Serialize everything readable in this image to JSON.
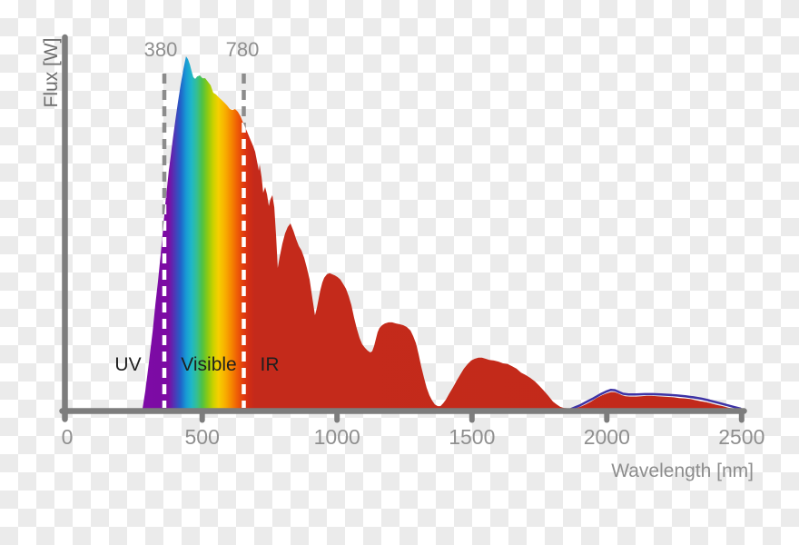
{
  "chart_data": {
    "type": "area",
    "title": "",
    "xlabel": "Wavelength [nm]",
    "ylabel": "Flux [W]",
    "x_range_nm": [
      0,
      2500
    ],
    "x_tick_labels": [
      "0",
      "500",
      "1000",
      "1500",
      "2000",
      "2500"
    ],
    "grid": false,
    "legend": false,
    "boundary_lines": [
      {
        "label": "380",
        "meaning": "UV / Visible boundary"
      },
      {
        "label": "780",
        "meaning": "Visible / IR boundary"
      }
    ],
    "region_labels": [
      "UV",
      "Visible",
      "IR"
    ],
    "series": [
      {
        "name": "solar-flux-spectrum",
        "style": "filled-area-spectral-gradient",
        "points_nm_flux": [
          [
            278,
            0
          ],
          [
            289,
            0.054
          ],
          [
            302,
            0.131
          ],
          [
            316,
            0.221
          ],
          [
            326,
            0.298
          ],
          [
            336,
            0.363
          ],
          [
            346,
            0.44
          ],
          [
            356,
            0.522
          ],
          [
            363,
            0.581
          ],
          [
            370,
            0.632
          ],
          [
            376,
            0.676
          ],
          [
            383,
            0.717
          ],
          [
            390,
            0.761
          ],
          [
            400,
            0.817
          ],
          [
            410,
            0.871
          ],
          [
            420,
            0.92
          ],
          [
            430,
            0.964
          ],
          [
            440,
            1
          ],
          [
            447,
            0.992
          ],
          [
            454,
            0.977
          ],
          [
            460,
            0.959
          ],
          [
            467,
            0.941
          ],
          [
            474,
            0.936
          ],
          [
            481,
            0.943
          ],
          [
            491,
            0.946
          ],
          [
            501,
            0.938
          ],
          [
            511,
            0.938
          ],
          [
            521,
            0.928
          ],
          [
            531,
            0.918
          ],
          [
            541,
            0.897
          ],
          [
            551,
            0.892
          ],
          [
            561,
            0.884
          ],
          [
            571,
            0.877
          ],
          [
            582,
            0.869
          ],
          [
            592,
            0.861
          ],
          [
            602,
            0.851
          ],
          [
            612,
            0.848
          ],
          [
            622,
            0.851
          ],
          [
            632,
            0.843
          ],
          [
            642,
            0.83
          ],
          [
            649,
            0.817
          ],
          [
            656,
            0.805
          ],
          [
            666,
            0.787
          ],
          [
            676,
            0.769
          ],
          [
            686,
            0.751
          ],
          [
            696,
            0.73
          ],
          [
            703,
            0.702
          ],
          [
            710,
            0.676
          ],
          [
            713,
            0.694
          ],
          [
            720,
            0.658
          ],
          [
            726,
            0.614
          ],
          [
            733,
            0.63
          ],
          [
            740,
            0.609
          ],
          [
            747,
            0.576
          ],
          [
            753,
            0.596
          ],
          [
            760,
            0.607
          ],
          [
            767,
            0.573
          ],
          [
            774,
            0.486
          ],
          [
            780,
            0.401
          ],
          [
            787,
            0.432
          ],
          [
            797,
            0.47
          ],
          [
            807,
            0.499
          ],
          [
            817,
            0.517
          ],
          [
            827,
            0.527
          ],
          [
            838,
            0.506
          ],
          [
            848,
            0.483
          ],
          [
            858,
            0.463
          ],
          [
            868,
            0.45
          ],
          [
            878,
            0.429
          ],
          [
            888,
            0.401
          ],
          [
            898,
            0.368
          ],
          [
            908,
            0.316
          ],
          [
            918,
            0.267
          ],
          [
            925,
            0.288
          ],
          [
            932,
            0.316
          ],
          [
            938,
            0.339
          ],
          [
            945,
            0.36
          ],
          [
            952,
            0.373
          ],
          [
            962,
            0.383
          ],
          [
            972,
            0.386
          ],
          [
            982,
            0.383
          ],
          [
            992,
            0.38
          ],
          [
            1002,
            0.375
          ],
          [
            1012,
            0.368
          ],
          [
            1023,
            0.355
          ],
          [
            1033,
            0.342
          ],
          [
            1043,
            0.321
          ],
          [
            1053,
            0.296
          ],
          [
            1063,
            0.26
          ],
          [
            1073,
            0.229
          ],
          [
            1083,
            0.203
          ],
          [
            1093,
            0.185
          ],
          [
            1103,
            0.175
          ],
          [
            1113,
            0.167
          ],
          [
            1123,
            0.162
          ],
          [
            1130,
            0.165
          ],
          [
            1137,
            0.18
          ],
          [
            1144,
            0.201
          ],
          [
            1150,
            0.219
          ],
          [
            1157,
            0.231
          ],
          [
            1167,
            0.239
          ],
          [
            1177,
            0.244
          ],
          [
            1191,
            0.247
          ],
          [
            1204,
            0.247
          ],
          [
            1218,
            0.244
          ],
          [
            1231,
            0.242
          ],
          [
            1245,
            0.239
          ],
          [
            1258,
            0.234
          ],
          [
            1272,
            0.224
          ],
          [
            1282,
            0.208
          ],
          [
            1292,
            0.188
          ],
          [
            1302,
            0.157
          ],
          [
            1312,
            0.121
          ],
          [
            1322,
            0.09
          ],
          [
            1332,
            0.062
          ],
          [
            1342,
            0.041
          ],
          [
            1352,
            0.026
          ],
          [
            1362,
            0.015
          ],
          [
            1373,
            0.01
          ],
          [
            1383,
            0.01
          ],
          [
            1393,
            0.018
          ],
          [
            1403,
            0.028
          ],
          [
            1416,
            0.046
          ],
          [
            1430,
            0.064
          ],
          [
            1443,
            0.082
          ],
          [
            1457,
            0.1
          ],
          [
            1470,
            0.116
          ],
          [
            1484,
            0.129
          ],
          [
            1497,
            0.139
          ],
          [
            1510,
            0.144
          ],
          [
            1524,
            0.147
          ],
          [
            1537,
            0.147
          ],
          [
            1551,
            0.144
          ],
          [
            1564,
            0.141
          ],
          [
            1581,
            0.139
          ],
          [
            1598,
            0.136
          ],
          [
            1615,
            0.131
          ],
          [
            1632,
            0.129
          ],
          [
            1649,
            0.123
          ],
          [
            1665,
            0.116
          ],
          [
            1682,
            0.105
          ],
          [
            1699,
            0.098
          ],
          [
            1716,
            0.09
          ],
          [
            1733,
            0.08
          ],
          [
            1750,
            0.067
          ],
          [
            1766,
            0.054
          ],
          [
            1783,
            0.039
          ],
          [
            1800,
            0.023
          ],
          [
            1814,
            0.015
          ],
          [
            1827,
            0.008
          ],
          [
            1840,
            0.005
          ],
          [
            1861,
            0.003
          ],
          [
            1881,
            0.003
          ],
          [
            1901,
            0.008
          ],
          [
            1921,
            0.015
          ],
          [
            1941,
            0.023
          ],
          [
            1962,
            0.033
          ],
          [
            1982,
            0.041
          ],
          [
            1999,
            0.046
          ],
          [
            2015,
            0.05
          ],
          [
            2029,
            0.05
          ],
          [
            2042,
            0.046
          ],
          [
            2056,
            0.041
          ],
          [
            2069,
            0.038
          ],
          [
            2086,
            0.037
          ],
          [
            2106,
            0.037
          ],
          [
            2127,
            0.038
          ],
          [
            2147,
            0.039
          ],
          [
            2167,
            0.039
          ],
          [
            2187,
            0.038
          ],
          [
            2207,
            0.037
          ],
          [
            2227,
            0.036
          ],
          [
            2248,
            0.035
          ],
          [
            2268,
            0.033
          ],
          [
            2288,
            0.032
          ],
          [
            2308,
            0.03
          ],
          [
            2328,
            0.027
          ],
          [
            2348,
            0.024
          ],
          [
            2369,
            0.021
          ],
          [
            2389,
            0.017
          ],
          [
            2409,
            0.013
          ],
          [
            2429,
            0.01
          ],
          [
            2449,
            0.006
          ],
          [
            2470,
            0.003
          ],
          [
            2490,
            0.001
          ],
          [
            2500,
            0
          ]
        ]
      },
      {
        "name": "ir-overlay-line",
        "style": "line",
        "color": "#3e33a5",
        "points_nm_flux": [
          [
            1868,
            0.002
          ],
          [
            1900,
            0.012
          ],
          [
            1925,
            0.022
          ],
          [
            1950,
            0.032
          ],
          [
            1975,
            0.043
          ],
          [
            2000,
            0.052
          ],
          [
            2015,
            0.056
          ],
          [
            2030,
            0.055
          ],
          [
            2045,
            0.05
          ],
          [
            2060,
            0.045
          ],
          [
            2080,
            0.043
          ],
          [
            2110,
            0.043
          ],
          [
            2140,
            0.044
          ],
          [
            2170,
            0.044
          ],
          [
            2200,
            0.043
          ],
          [
            2230,
            0.042
          ],
          [
            2260,
            0.04
          ],
          [
            2290,
            0.038
          ],
          [
            2320,
            0.035
          ],
          [
            2350,
            0.031
          ],
          [
            2380,
            0.026
          ],
          [
            2410,
            0.02
          ],
          [
            2440,
            0.014
          ],
          [
            2470,
            0.008
          ],
          [
            2495,
            0.003
          ]
        ]
      }
    ],
    "spectral_gradient_stops": [
      {
        "nm": 280,
        "color": "#7d0ba6"
      },
      {
        "nm": 375,
        "color": "#7c0ba3"
      },
      {
        "nm": 400,
        "color": "#4b3bb8"
      },
      {
        "nm": 420,
        "color": "#2063c8"
      },
      {
        "nm": 440,
        "color": "#189ad5"
      },
      {
        "nm": 460,
        "color": "#1fb7c8"
      },
      {
        "nm": 480,
        "color": "#35bf92"
      },
      {
        "nm": 500,
        "color": "#4fc244"
      },
      {
        "nm": 520,
        "color": "#8cca12"
      },
      {
        "nm": 540,
        "color": "#c9d200"
      },
      {
        "nm": 560,
        "color": "#f6d000"
      },
      {
        "nm": 585,
        "color": "#f8ae00"
      },
      {
        "nm": 608,
        "color": "#f58700"
      },
      {
        "nm": 628,
        "color": "#f06105"
      },
      {
        "nm": 648,
        "color": "#e4420c"
      },
      {
        "nm": 668,
        "color": "#d52d13"
      },
      {
        "nm": 693,
        "color": "#c42a1b"
      },
      {
        "nm": 2500,
        "color": "#c2291a"
      }
    ]
  },
  "labels": {
    "boundary_380": "380",
    "boundary_780": "780",
    "region_uv": "UV",
    "region_visible": "Visible",
    "region_ir": "IR",
    "xlabel": "Wavelength [nm]",
    "ylabel": "Flux [W]",
    "ticks": [
      "0",
      "500",
      "1000",
      "1500",
      "2000",
      "2500"
    ]
  },
  "colors": {
    "axis": "#7d7d7d",
    "tick_label": "#8f8f8f",
    "xlabel_color": "#8d8d8d",
    "ylabel_color": "#6e6e6e",
    "boundary_label": "#8f8f8f",
    "dash_above": "#8c8c8c",
    "dash_inside": "#ffffff",
    "region_label": "#1f1f1f",
    "ir_line": "#3e33a5",
    "checker_light": "#ffffff",
    "checker_dark": "#ebebeb"
  }
}
